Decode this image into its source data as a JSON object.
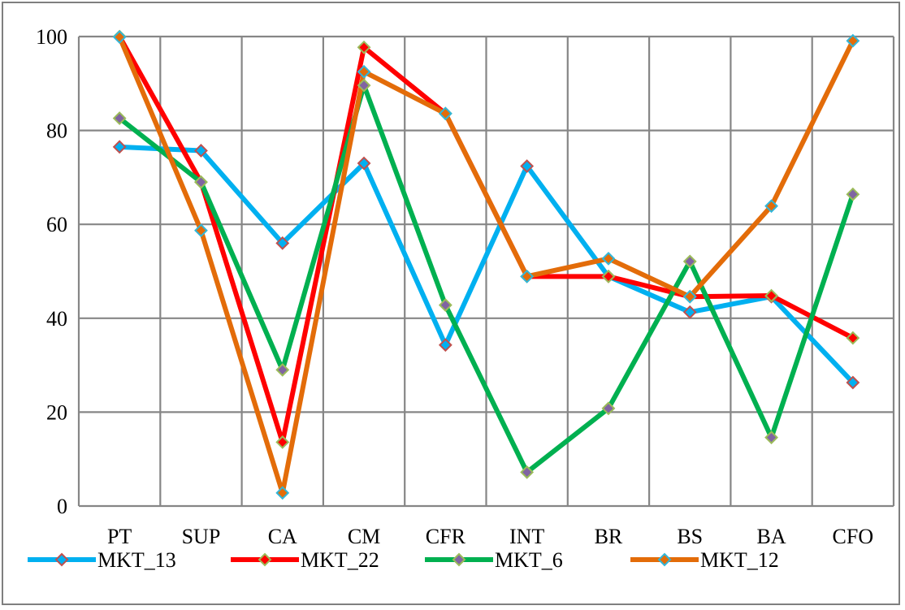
{
  "chart_data": {
    "type": "line",
    "title": "",
    "xlabel": "",
    "ylabel": "",
    "categories": [
      "PT",
      "SUP",
      "CA",
      "CM",
      "CFR",
      "INT",
      "BR",
      "BS",
      "BA",
      "CFO"
    ],
    "ylim": [
      0,
      100
    ],
    "yticks": [
      0,
      20,
      40,
      60,
      80,
      100
    ],
    "grid": true,
    "legend_position": "bottom",
    "series": [
      {
        "name": "MKT_13",
        "color": "#00b0f0",
        "marker_fill": "#00b0f0",
        "marker_stroke": "#c0504d",
        "values": [
          76.5,
          75.7,
          56,
          73,
          34.3,
          72.4,
          48.9,
          41.3,
          44.6,
          26.3
        ]
      },
      {
        "name": "MKT_22",
        "color": "#ff0000",
        "marker_fill": "#ff0000",
        "marker_stroke": "#9bbb59",
        "values": [
          100,
          69,
          13.6,
          97.7,
          83.6,
          48.9,
          48.9,
          44.6,
          44.8,
          35.8
        ]
      },
      {
        "name": "MKT_6",
        "color": "#00b050",
        "marker_fill": "#8064a2",
        "marker_stroke": "#9bbb59",
        "values": [
          82.6,
          69,
          29,
          89.6,
          42.8,
          7.2,
          20.8,
          52.1,
          14.6,
          66.4
        ]
      },
      {
        "name": "MKT_12",
        "color": "#e36c09",
        "marker_fill": "#e36c09",
        "marker_stroke": "#31b6d9",
        "values": [
          99.9,
          58.7,
          2.8,
          92.5,
          83.6,
          48.9,
          52.7,
          44.6,
          63.9,
          99.1
        ]
      }
    ]
  }
}
